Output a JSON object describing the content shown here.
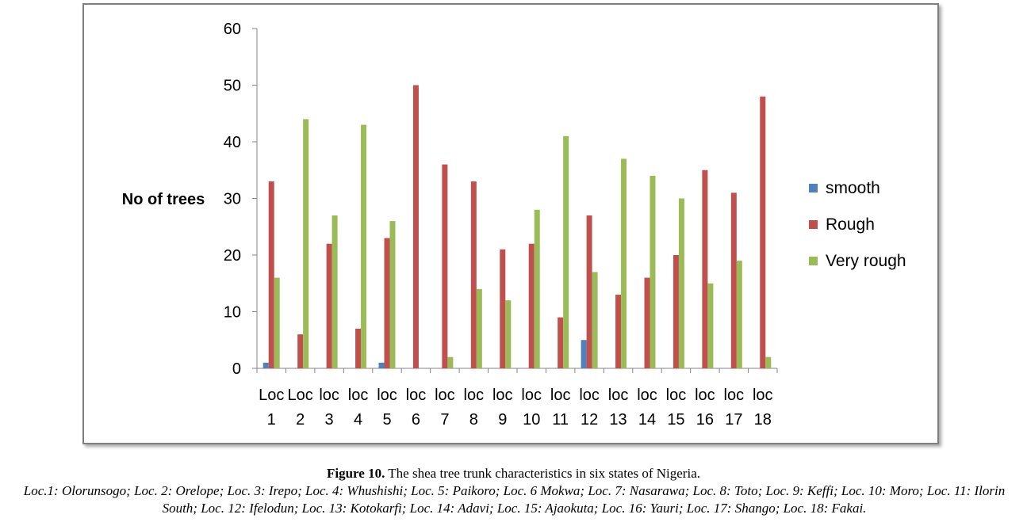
{
  "chart_data": {
    "type": "bar",
    "ylabel": "No of trees",
    "ylim": [
      0,
      60
    ],
    "yticks": [
      0,
      10,
      20,
      30,
      40,
      50,
      60
    ],
    "categories": [
      [
        "Loc",
        "1"
      ],
      [
        "Loc",
        "2"
      ],
      [
        "loc",
        "3"
      ],
      [
        "loc",
        "4"
      ],
      [
        "loc",
        "5"
      ],
      [
        "loc",
        "6"
      ],
      [
        "loc",
        "7"
      ],
      [
        "loc",
        "8"
      ],
      [
        "loc",
        "9"
      ],
      [
        "loc",
        "10"
      ],
      [
        "loc",
        "11"
      ],
      [
        "loc",
        "12"
      ],
      [
        "loc",
        "13"
      ],
      [
        "loc",
        "14"
      ],
      [
        "loc",
        "15"
      ],
      [
        "loc",
        "16"
      ],
      [
        "loc",
        "17"
      ],
      [
        "loc",
        "18"
      ]
    ],
    "series": [
      {
        "name": "smooth",
        "color": "#4f81bd",
        "values": [
          1,
          0,
          0,
          0,
          1,
          0,
          0,
          0,
          0,
          0,
          0,
          5,
          0,
          0,
          0,
          0,
          0,
          0
        ]
      },
      {
        "name": "Rough",
        "color": "#c0504d",
        "values": [
          33,
          6,
          22,
          7,
          23,
          50,
          36,
          33,
          21,
          22,
          9,
          27,
          13,
          16,
          20,
          35,
          31,
          48
        ]
      },
      {
        "name": "Very rough",
        "color": "#9bbb59",
        "values": [
          16,
          44,
          27,
          43,
          26,
          0,
          2,
          14,
          12,
          28,
          41,
          17,
          37,
          34,
          30,
          15,
          19,
          2
        ]
      }
    ],
    "legend_position": "right",
    "grid": false
  },
  "caption": {
    "label": "Figure 10.",
    "text": " The shea tree trunk characteristics in six states of Nigeria."
  },
  "note": "Loc.1: Olorunsogo; Loc. 2: Orelope; Loc. 3: Irepo; Loc. 4: Whushishi; Loc. 5: Paikoro; Loc. 6 Mokwa; Loc. 7: Nasarawa; Loc. 8: Toto; Loc. 9: Keffi; Loc. 10: Moro; Loc. 11: Ilorin South; Loc. 12: Ifelodun; Loc. 13: Kotokarfi; Loc. 14: Adavi; Loc. 15: Ajaokuta; Loc. 16: Yauri; Loc. 17: Shango; Loc. 18: Fakai."
}
